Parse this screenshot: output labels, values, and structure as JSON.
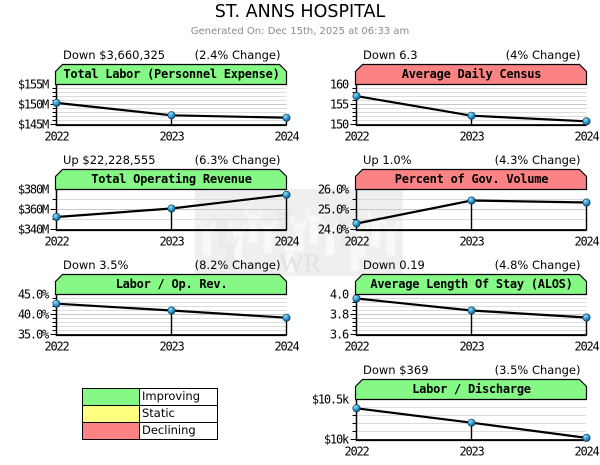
{
  "page": {
    "title": "ST. ANNS HOSPITAL",
    "subtitle": "Generated On: Dec 15th, 2025 at 06:33 am",
    "watermark_text": "WR"
  },
  "colors": {
    "improving_green": "#85f885",
    "declining_red": "#fc8383",
    "static_yellow": "#ffff80",
    "grid_minor": "#dcdcdc",
    "grid_major": "#c8c8c8",
    "marker_blue": "#2a9ad0",
    "subtitle_gray": "#8a8a8a"
  },
  "legend": {
    "items": [
      {
        "label": "Improving",
        "status": "improving",
        "color": "#85f885"
      },
      {
        "label": "Static",
        "status": "static",
        "color": "#ffff80"
      },
      {
        "label": "Declining",
        "status": "declining",
        "color": "#fc8383"
      }
    ]
  },
  "chart_data": [
    {
      "type": "line",
      "title": "Total Labor (Personnel Expense)",
      "status": "improving",
      "change_amount": "Down $3,660,325",
      "change_percent": "(2.4% Change)",
      "x": [
        "2022",
        "2023",
        "2024"
      ],
      "values": [
        150.4,
        147.3,
        146.7
      ],
      "ylim": [
        145,
        155
      ],
      "y_minor_step": 1,
      "y_ticks": [
        {
          "label": "$155M",
          "value": 155
        },
        {
          "label": "$150M",
          "value": 150
        },
        {
          "label": "$145M",
          "value": 145
        }
      ],
      "grid_col": 0,
      "grid_row": 0
    },
    {
      "type": "line",
      "title": "Average Daily Census",
      "status": "declining",
      "change_amount": "Down 6.3",
      "change_percent": "(4% Change)",
      "x": [
        "2022",
        "2023",
        "2024"
      ],
      "values": [
        157.1,
        152.2,
        150.8
      ],
      "ylim": [
        150,
        160
      ],
      "y_minor_step": 1,
      "y_ticks": [
        {
          "label": "160",
          "value": 160
        },
        {
          "label": "155",
          "value": 155
        },
        {
          "label": "150",
          "value": 150
        }
      ],
      "grid_col": 1,
      "grid_row": 0
    },
    {
      "type": "line",
      "title": "Total Operating Revenue",
      "status": "improving",
      "change_amount": "Up $22,228,555",
      "change_percent": "(6.3% Change)",
      "x": [
        "2022",
        "2023",
        "2024"
      ],
      "values": [
        352.5,
        361.0,
        374.7
      ],
      "ylim": [
        340,
        380
      ],
      "y_minor_step": 10,
      "y_ticks": [
        {
          "label": "$380M",
          "value": 380
        },
        {
          "label": "$360M",
          "value": 360
        },
        {
          "label": "$340M",
          "value": 340
        }
      ],
      "grid_col": 0,
      "grid_row": 1
    },
    {
      "type": "line",
      "title": "Percent of Gov. Volume",
      "status": "declining",
      "change_amount": "Up 1.0%",
      "change_percent": "(4.3% Change)",
      "x": [
        "2022",
        "2023",
        "2024"
      ],
      "values": [
        24.3,
        25.45,
        25.35
      ],
      "ylim": [
        24,
        26
      ],
      "y_minor_step": 0.5,
      "y_ticks": [
        {
          "label": "26.0%",
          "value": 26
        },
        {
          "label": "25.0%",
          "value": 25
        },
        {
          "label": "24.0%",
          "value": 24
        }
      ],
      "grid_col": 1,
      "grid_row": 1
    },
    {
      "type": "line",
      "title": "Labor / Op. Rev.",
      "status": "improving",
      "change_amount": "Down 3.5%",
      "change_percent": "(8.2% Change)",
      "x": [
        "2022",
        "2023",
        "2024"
      ],
      "values": [
        42.7,
        41.0,
        39.2
      ],
      "ylim": [
        35,
        45
      ],
      "y_minor_step": 1,
      "y_ticks": [
        {
          "label": "45.0%",
          "value": 45
        },
        {
          "label": "40.0%",
          "value": 40
        },
        {
          "label": "35.0%",
          "value": 35
        }
      ],
      "grid_col": 0,
      "grid_row": 2
    },
    {
      "type": "line",
      "title": "Average Length Of Stay (ALOS)",
      "status": "improving",
      "change_amount": "Down 0.19",
      "change_percent": "(4.8% Change)",
      "x": [
        "2022",
        "2023",
        "2024"
      ],
      "values": [
        3.96,
        3.84,
        3.77
      ],
      "ylim": [
        3.6,
        4.0
      ],
      "y_minor_step": 0.04,
      "y_ticks": [
        {
          "label": "4.0",
          "value": 4.0
        },
        {
          "label": "3.8",
          "value": 3.8
        },
        {
          "label": "3.6",
          "value": 3.6
        }
      ],
      "grid_col": 1,
      "grid_row": 2
    },
    {
      "type": "line",
      "title": "Labor / Discharge",
      "status": "improving",
      "change_amount": "Down $369",
      "change_percent": "(3.5% Change)",
      "x": [
        "2022",
        "2023",
        "2024"
      ],
      "values": [
        10.39,
        10.21,
        10.02
      ],
      "ylim": [
        10.0,
        10.5
      ],
      "y_minor_step": 0.1,
      "y_ticks": [
        {
          "label": "$10.5k",
          "value": 10.5
        },
        {
          "label": "$10k",
          "value": 10.0
        }
      ],
      "grid_col": 1,
      "grid_row": 3
    }
  ]
}
